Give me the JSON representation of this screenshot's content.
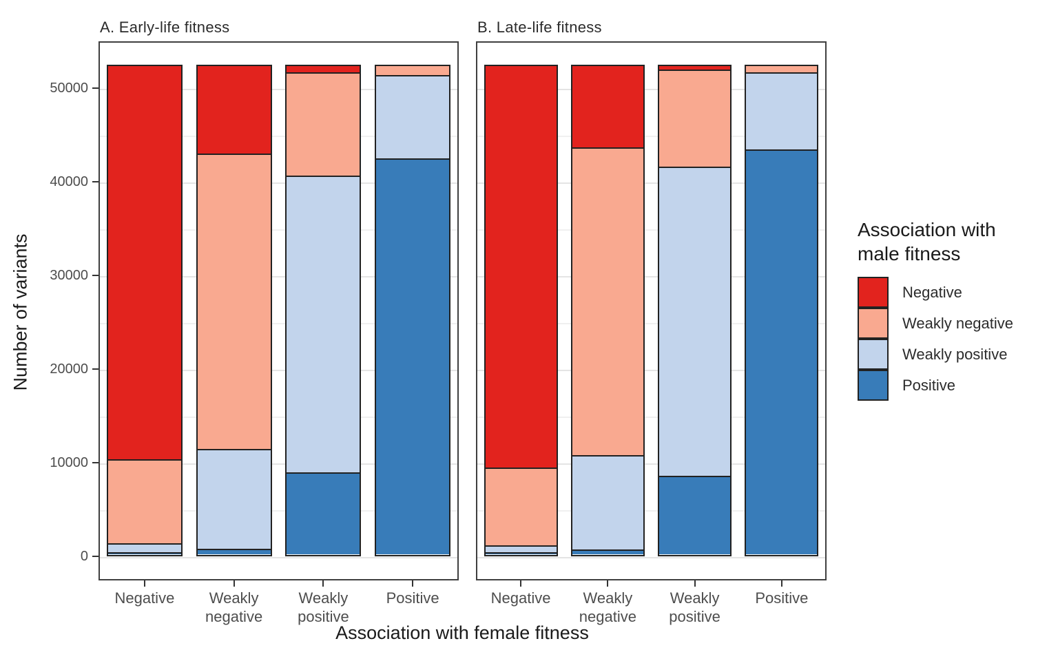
{
  "chart_data": {
    "type": "bar",
    "stacked": true,
    "title": "",
    "xlabel": "Association with female fitness",
    "ylabel": "Number of variants",
    "categories": [
      "Negative",
      "Weakly negative",
      "Weakly positive",
      "Positive"
    ],
    "x_tick_label_lines": [
      [
        "Negative"
      ],
      [
        "Weakly",
        "negative"
      ],
      [
        "Weakly",
        "positive"
      ],
      [
        "Positive"
      ]
    ],
    "ylim": [
      -2600,
      55000
    ],
    "y_ticks": [
      0,
      10000,
      20000,
      30000,
      40000,
      50000
    ],
    "y_tick_labels": [
      "0",
      "10000",
      "20000",
      "30000",
      "40000",
      "50000"
    ],
    "y_minor_ticks": [
      5000,
      15000,
      25000,
      35000,
      45000
    ],
    "grid": "major+minor",
    "legend_position": "right",
    "stack_order_bottom_to_top": [
      "Positive",
      "Weakly positive",
      "Weakly negative",
      "Negative"
    ],
    "bar_total_per_category": 52200,
    "panels": [
      {
        "label": "A. Early-life fitness",
        "series": [
          {
            "name": "Negative",
            "values": [
              42000,
              9400,
              700,
              0
            ]
          },
          {
            "name": "Weakly negative",
            "values": [
              9000,
              31500,
              11000,
              1000
            ]
          },
          {
            "name": "Weakly positive",
            "values": [
              1000,
              10700,
              31700,
              8900
            ]
          },
          {
            "name": "Positive",
            "values": [
              200,
              600,
              8800,
              42300
            ]
          }
        ]
      },
      {
        "label": "B. Late-life fitness",
        "series": [
          {
            "name": "Negative",
            "values": [
              42900,
              8700,
              400,
              0
            ]
          },
          {
            "name": "Weakly negative",
            "values": [
              8300,
              32900,
              10400,
              700
            ]
          },
          {
            "name": "Weakly positive",
            "values": [
              800,
              10100,
              33000,
              8200
            ]
          },
          {
            "name": "Positive",
            "values": [
              200,
              500,
              8400,
              43300
            ]
          }
        ]
      }
    ],
    "legend": {
      "title_lines": [
        "Association with",
        "male fitness"
      ],
      "entries": [
        {
          "label": "Negative",
          "color": "#e2231e"
        },
        {
          "label": "Weakly negative",
          "color": "#f9a990"
        },
        {
          "label": "Weakly positive",
          "color": "#c2d4ec"
        },
        {
          "label": "Positive",
          "color": "#387cb9"
        }
      ]
    },
    "colors": {
      "background": "#ffffff",
      "panel_border": "#3f3f3f",
      "bar_border": "#212121",
      "grid_major": "#e4e4e4",
      "grid_minor": "#f0f0f0",
      "tick_label": "#4d4d4d",
      "axis_title": "#1a1a1a"
    }
  }
}
